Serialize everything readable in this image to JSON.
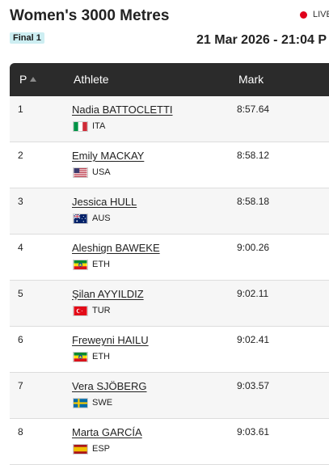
{
  "event": {
    "title": "Women's 3000 Metres",
    "live_label": "LIVE",
    "round": "Final 1",
    "datetime": "21 Mar 2026 - 21:04 P"
  },
  "table": {
    "headers": {
      "position": "P",
      "athlete": "Athlete",
      "mark": "Mark"
    },
    "rows": [
      {
        "pos": "1",
        "name": "Nadia BATTOCLETTI",
        "country": "ITA",
        "flag": "italy-flag-icon",
        "mark": "8:57.64"
      },
      {
        "pos": "2",
        "name": "Emily MACKAY",
        "country": "USA",
        "flag": "usa-flag-icon",
        "mark": "8:58.12"
      },
      {
        "pos": "3",
        "name": "Jessica HULL",
        "country": "AUS",
        "flag": "australia-flag-icon",
        "mark": "8:58.18"
      },
      {
        "pos": "4",
        "name": "Aleshign BAWEKE",
        "country": "ETH",
        "flag": "ethiopia-flag-icon",
        "mark": "9:00.26"
      },
      {
        "pos": "5",
        "name": "Şilan AYYILDIZ",
        "country": "TUR",
        "flag": "turkey-flag-icon",
        "mark": "9:02.11"
      },
      {
        "pos": "6",
        "name": "Freweyni HAILU",
        "country": "ETH",
        "flag": "ethiopia-flag-icon",
        "mark": "9:02.41"
      },
      {
        "pos": "7",
        "name": "Vera SJÖBERG",
        "country": "SWE",
        "flag": "sweden-flag-icon",
        "mark": "9:03.57"
      },
      {
        "pos": "8",
        "name": "Marta GARCÍA",
        "country": "ESP",
        "flag": "spain-flag-icon",
        "mark": "9:03.61"
      }
    ]
  },
  "colors": {
    "header_bg": "#2b2b2b",
    "live_dot": "#e0001b",
    "badge_bg": "#cdeef2"
  }
}
